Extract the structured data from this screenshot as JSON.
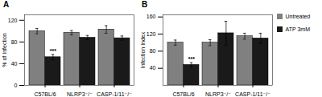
{
  "chart_data": [
    {
      "type": "bar",
      "title": "A",
      "ylabel": "% of Infection",
      "categories": [
        "C57BL/6",
        "NLRP3⁻/⁻",
        "CASP-1/11⁻/⁻"
      ],
      "series": [
        {
          "name": "Untreated",
          "color": "#808080",
          "values": [
            100,
            97,
            103
          ],
          "errors": [
            5,
            4,
            7
          ]
        },
        {
          "name": "ATP 3mM",
          "color": "#1a1a1a",
          "values": [
            52,
            88,
            87
          ],
          "errors": [
            5,
            4,
            4
          ]
        }
      ],
      "ylim": [
        0,
        130
      ],
      "yticks": [
        0,
        40,
        80,
        120
      ],
      "annotations": [
        {
          "text": "***",
          "category": "C57BL/6",
          "series": "ATP 3mM"
        }
      ]
    },
    {
      "type": "bar",
      "title": "B",
      "ylabel": "Infection Index",
      "categories": [
        "C57BL/6",
        "NLRP3⁻/⁻",
        "CASP-1/11⁻/⁻"
      ],
      "series": [
        {
          "name": "Untreated",
          "color": "#808080",
          "values": [
            100,
            100,
            115
          ],
          "errors": [
            6,
            7,
            7
          ]
        },
        {
          "name": "ATP 3mM",
          "color": "#1a1a1a",
          "values": [
            48,
            122,
            110
          ],
          "errors": [
            5,
            28,
            12
          ]
        }
      ],
      "ylim": [
        0,
        165
      ],
      "yticks": [
        40,
        80,
        120,
        160
      ],
      "annotations": [
        {
          "text": "***",
          "category": "C57BL/6",
          "series": "ATP 3mM"
        }
      ],
      "legend": "upper right"
    }
  ]
}
